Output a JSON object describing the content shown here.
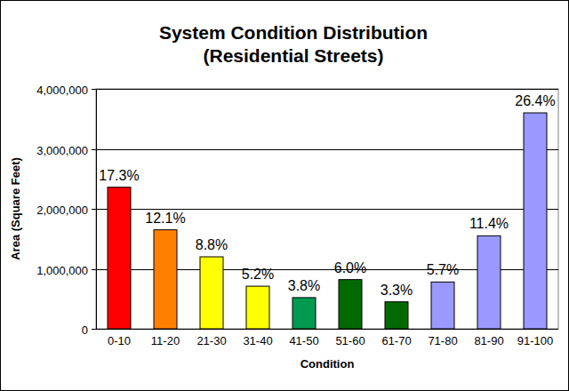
{
  "chart_data": {
    "type": "bar",
    "title": "System Condition Distribution",
    "subtitle": "(Residential Streets)",
    "x_label": "Condition",
    "y_label": "Area (Square Feet)",
    "categories": [
      "0-10",
      "11-20",
      "21-30",
      "31-40",
      "41-50",
      "51-60",
      "61-70",
      "71-80",
      "81-90",
      "91-100"
    ],
    "values": [
      2360000,
      1650000,
      1200000,
      710000,
      520000,
      820000,
      450000,
      780000,
      1550000,
      3600000
    ],
    "shares": [
      {
        "value": 17.3,
        "label": "17.3%"
      },
      {
        "value": 12.1,
        "label": "12.1%"
      },
      {
        "value": 8.8,
        "label": "8.8%"
      },
      {
        "value": 5.2,
        "label": "5.2%"
      },
      {
        "value": 3.8,
        "label": "3.8%"
      },
      {
        "value": 6.0,
        "label": "6.0%"
      },
      {
        "value": 3.3,
        "label": "3.3%"
      },
      {
        "value": 5.7,
        "label": "5.7%"
      },
      {
        "value": 11.4,
        "label": "11.4%"
      },
      {
        "value": 26.4,
        "label": "26.4%"
      }
    ],
    "colors": [
      "#ff0000",
      "#ff8000",
      "#ffff00",
      "#ffff00",
      "#009950",
      "#006a00",
      "#006a00",
      "#9999ff",
      "#9999ff",
      "#9999ff"
    ],
    "ylim": [
      0,
      4000000
    ],
    "yticks": [
      0,
      {
        "value": 1000000,
        "label": "1,000,000"
      },
      {
        "value": 2000000,
        "label": "2,000,000"
      },
      {
        "value": 3000000,
        "label": "3,000,000"
      },
      {
        "value": 4000000,
        "label": "4,000,000"
      }
    ],
    "grid": true
  }
}
